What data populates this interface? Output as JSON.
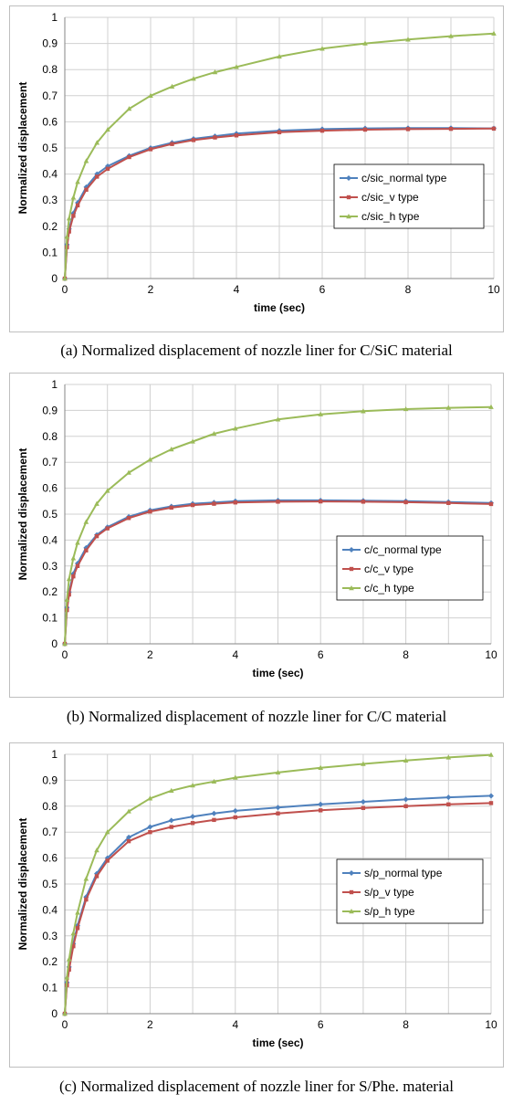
{
  "chart_data": [
    {
      "type": "line",
      "caption": "(a) Normalized displacement of nozzle liner for C/SiC material",
      "xlabel": "time (sec)",
      "ylabel": "Normalized  displacement",
      "xlim": [
        0,
        10
      ],
      "ylim": [
        0,
        1
      ],
      "xticks": [
        0,
        2,
        4,
        6,
        8,
        10
      ],
      "yticks": [
        0,
        0.1,
        0.2,
        0.3,
        0.4,
        0.5,
        0.6,
        0.7,
        0.8,
        0.9,
        1
      ],
      "grid": true,
      "legend_position": "right-middle",
      "x": [
        0,
        0.05,
        0.1,
        0.2,
        0.3,
        0.5,
        0.75,
        1,
        1.5,
        2,
        2.5,
        3,
        3.5,
        4,
        5,
        6,
        7,
        8,
        9,
        10
      ],
      "series": [
        {
          "name": "c/sic_normal type",
          "color": "#4f81bd",
          "marker": "diamond",
          "values": [
            0,
            0.13,
            0.19,
            0.25,
            0.29,
            0.35,
            0.4,
            0.43,
            0.47,
            0.5,
            0.52,
            0.535,
            0.545,
            0.555,
            0.566,
            0.572,
            0.575,
            0.576,
            0.576,
            0.575
          ]
        },
        {
          "name": "c/sic_v type",
          "color": "#c0504d",
          "marker": "square",
          "values": [
            0,
            0.12,
            0.18,
            0.24,
            0.28,
            0.34,
            0.39,
            0.42,
            0.465,
            0.495,
            0.515,
            0.53,
            0.54,
            0.548,
            0.56,
            0.566,
            0.57,
            0.572,
            0.573,
            0.574
          ]
        },
        {
          "name": "c/sic_h type",
          "color": "#9bbb59",
          "marker": "triangle",
          "values": [
            0,
            0.16,
            0.23,
            0.31,
            0.37,
            0.45,
            0.52,
            0.57,
            0.65,
            0.7,
            0.735,
            0.765,
            0.79,
            0.81,
            0.85,
            0.88,
            0.9,
            0.915,
            0.928,
            0.938
          ]
        }
      ]
    },
    {
      "type": "line",
      "caption": "(b) Normalized displacement of nozzle liner for C/C material",
      "xlabel": "time (sec)",
      "ylabel": "Normalized displacement",
      "xlim": [
        0,
        10
      ],
      "ylim": [
        0,
        1
      ],
      "xticks": [
        0,
        2,
        4,
        6,
        8,
        10
      ],
      "yticks": [
        0,
        0.1,
        0.2,
        0.3,
        0.4,
        0.5,
        0.6,
        0.7,
        0.8,
        0.9,
        1
      ],
      "grid": true,
      "legend_position": "right-middle",
      "x": [
        0,
        0.05,
        0.1,
        0.2,
        0.3,
        0.5,
        0.75,
        1,
        1.5,
        2,
        2.5,
        3,
        3.5,
        4,
        5,
        6,
        7,
        8,
        9,
        10
      ],
      "series": [
        {
          "name": "c/c_normal type",
          "color": "#4f81bd",
          "marker": "diamond",
          "values": [
            0,
            0.14,
            0.2,
            0.27,
            0.31,
            0.37,
            0.42,
            0.45,
            0.49,
            0.515,
            0.53,
            0.54,
            0.545,
            0.55,
            0.553,
            0.553,
            0.552,
            0.55,
            0.547,
            0.543
          ]
        },
        {
          "name": "c/c_v type",
          "color": "#c0504d",
          "marker": "square",
          "values": [
            0,
            0.13,
            0.19,
            0.26,
            0.3,
            0.36,
            0.415,
            0.445,
            0.485,
            0.51,
            0.525,
            0.535,
            0.54,
            0.545,
            0.548,
            0.549,
            0.548,
            0.546,
            0.543,
            0.539
          ]
        },
        {
          "name": "c/c_h type",
          "color": "#9bbb59",
          "marker": "triangle",
          "values": [
            0,
            0.17,
            0.25,
            0.33,
            0.39,
            0.47,
            0.54,
            0.59,
            0.66,
            0.71,
            0.75,
            0.78,
            0.81,
            0.83,
            0.865,
            0.885,
            0.897,
            0.905,
            0.91,
            0.913
          ]
        }
      ]
    },
    {
      "type": "line",
      "caption": "(c) Normalized displacement of nozzle liner for S/Phe. material",
      "xlabel": "time (sec)",
      "ylabel": "Normalized displacement",
      "xlim": [
        0,
        10
      ],
      "ylim": [
        0,
        1
      ],
      "xticks": [
        0,
        2,
        4,
        6,
        8,
        10
      ],
      "yticks": [
        0,
        0.1,
        0.2,
        0.3,
        0.4,
        0.5,
        0.6,
        0.7,
        0.8,
        0.9,
        1
      ],
      "grid": true,
      "legend_position": "right-middle",
      "x": [
        0,
        0.05,
        0.1,
        0.2,
        0.3,
        0.5,
        0.75,
        1,
        1.5,
        2,
        2.5,
        3,
        3.5,
        4,
        5,
        6,
        7,
        8,
        9,
        10
      ],
      "series": [
        {
          "name": "s/p_normal type",
          "color": "#4f81bd",
          "marker": "diamond",
          "values": [
            0,
            0.12,
            0.18,
            0.27,
            0.34,
            0.45,
            0.54,
            0.6,
            0.68,
            0.72,
            0.745,
            0.76,
            0.772,
            0.782,
            0.795,
            0.807,
            0.817,
            0.826,
            0.834,
            0.84
          ]
        },
        {
          "name": "s/p_v type",
          "color": "#c0504d",
          "marker": "square",
          "values": [
            0,
            0.11,
            0.17,
            0.26,
            0.33,
            0.44,
            0.53,
            0.59,
            0.665,
            0.7,
            0.72,
            0.735,
            0.747,
            0.757,
            0.772,
            0.784,
            0.793,
            0.8,
            0.807,
            0.812
          ]
        },
        {
          "name": "s/p_h type",
          "color": "#9bbb59",
          "marker": "triangle",
          "values": [
            0,
            0.14,
            0.21,
            0.31,
            0.39,
            0.52,
            0.63,
            0.7,
            0.78,
            0.83,
            0.86,
            0.88,
            0.895,
            0.91,
            0.93,
            0.948,
            0.963,
            0.976,
            0.988,
            0.998
          ]
        }
      ]
    }
  ]
}
